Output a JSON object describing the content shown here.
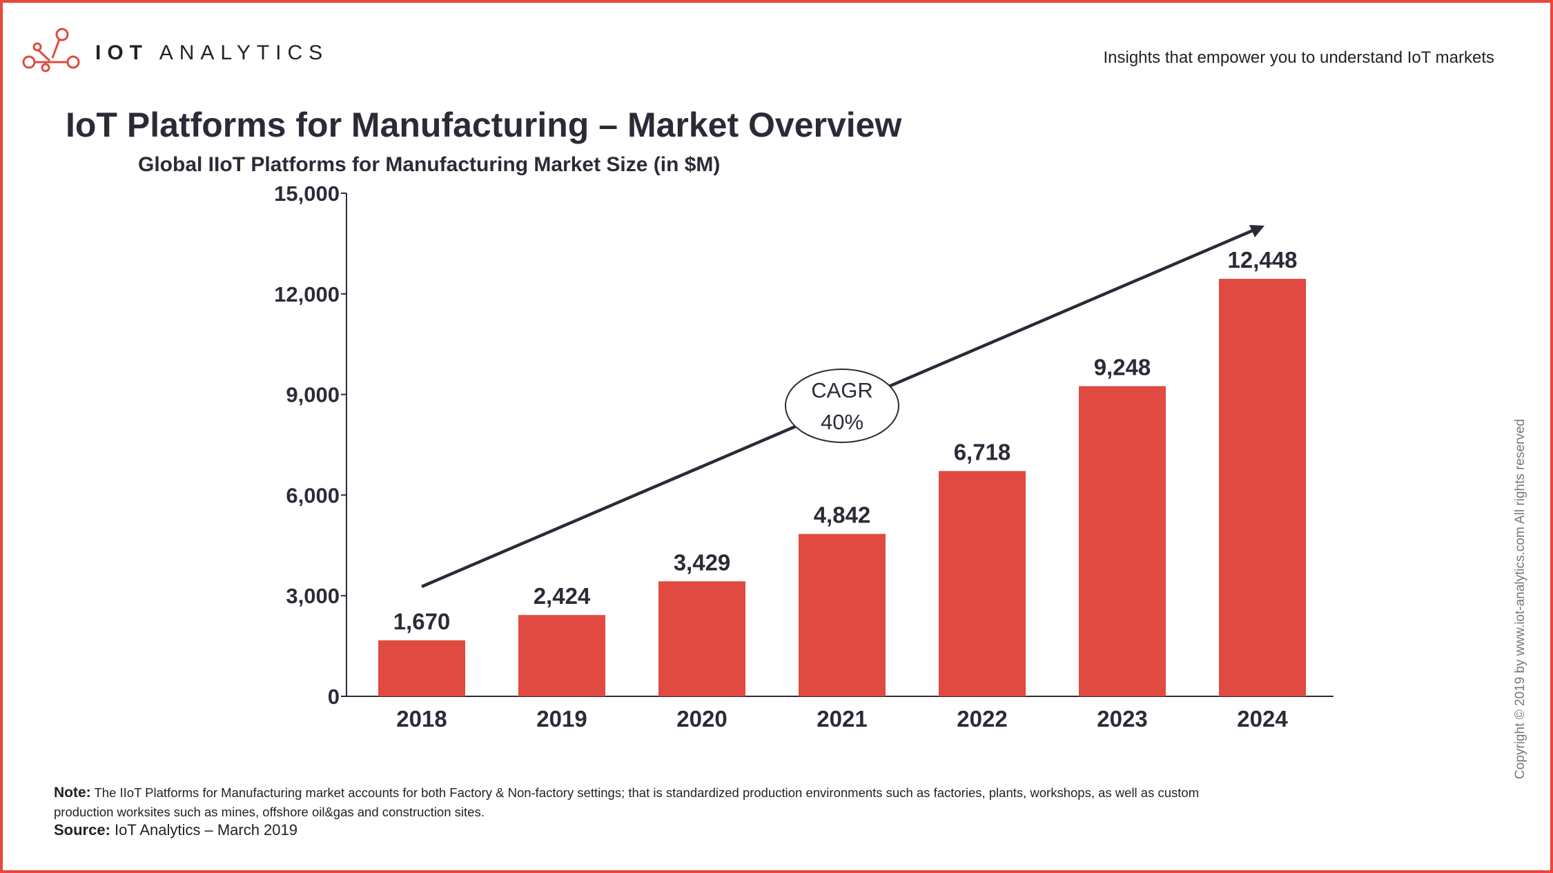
{
  "brand": {
    "name_bold": "IOT",
    "name_light": "ANALYTICS",
    "tagline": "Insights that empower you to understand IoT markets"
  },
  "title": "IoT Platforms for Manufacturing – Market Overview",
  "copyright": "Copyright © 2019 by www.iot-analytics.com All rights reserved",
  "note": {
    "label": "Note:",
    "text": "The IIoT Platforms for Manufacturing market accounts for both Factory & Non-factory settings; that is standardized production environments such as factories, plants, workshops, as well as custom production worksites such as mines, offshore oil&gas and construction sites."
  },
  "source": {
    "label": "Source:",
    "text": "IoT Analytics – March 2019"
  },
  "colors": {
    "bar": "#e04a40",
    "text": "#2b2b38",
    "frame": "#e9483d"
  },
  "chart_data": {
    "type": "bar",
    "title": "Global IIoT Platforms for Manufacturing Market Size (in $M)",
    "categories": [
      "2018",
      "2019",
      "2020",
      "2021",
      "2022",
      "2023",
      "2024"
    ],
    "values": [
      1670,
      2424,
      3429,
      4842,
      6718,
      9248,
      12448
    ],
    "value_labels": [
      "1,670",
      "2,424",
      "3,429",
      "4,842",
      "6,718",
      "9,248",
      "12,448"
    ],
    "ylim": [
      0,
      15000
    ],
    "yticks": [
      0,
      3000,
      6000,
      9000,
      12000,
      15000
    ],
    "ytick_labels": [
      "0",
      "3,000",
      "6,000",
      "9,000",
      "12,000",
      "15,000"
    ],
    "grid": false,
    "annotation": {
      "line1": "CAGR",
      "line2": "40%",
      "cagr_percent": 40
    }
  }
}
